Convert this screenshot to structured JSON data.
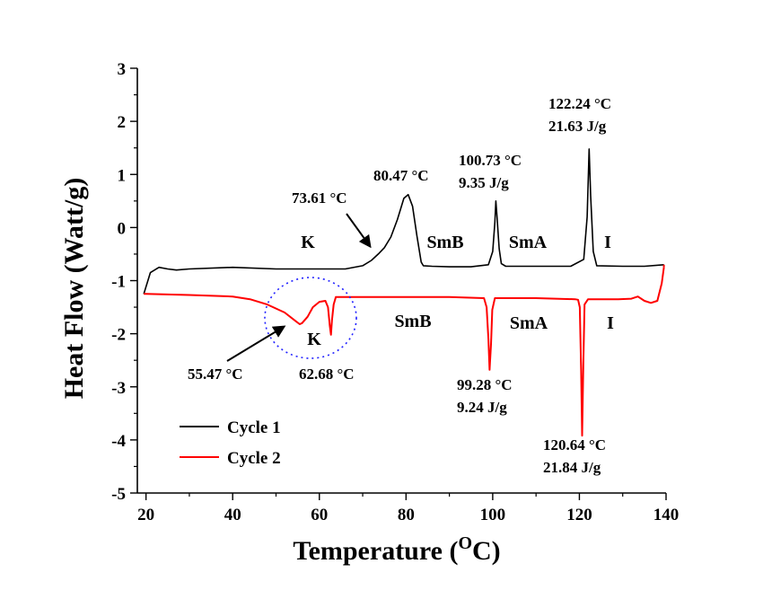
{
  "chart_data": {
    "type": "line",
    "title": "",
    "xlabel": "Temperature (",
    "xlabel_sup": "O",
    "xlabel_tail": "C)",
    "ylabel": "Heat Flow (Watt/g)",
    "xlim": [
      18,
      140
    ],
    "ylim": [
      -5,
      3
    ],
    "x_ticks": [
      20,
      40,
      60,
      80,
      100,
      120,
      140
    ],
    "y_ticks": [
      3,
      2,
      1,
      0,
      -1,
      -2,
      -3,
      -4,
      -5
    ],
    "grid": false,
    "legend_position": "bottom-left",
    "series": [
      {
        "name": "Cycle 1",
        "color": "#000000",
        "x": [
          19.5,
          21,
          23,
          25,
          27,
          30,
          40,
          50,
          60,
          66,
          70,
          72,
          73.6,
          75,
          76.5,
          78,
          79.5,
          80.5,
          81.5,
          82.5,
          83.5,
          84,
          86,
          90,
          95,
          99,
          100,
          100.5,
          100.73,
          101,
          101.5,
          102,
          103,
          110,
          118,
          121,
          121.8,
          122.24,
          122.6,
          123.2,
          124,
          130,
          135,
          139.5
        ],
        "y": [
          -1.25,
          -0.85,
          -0.75,
          -0.78,
          -0.8,
          -0.78,
          -0.75,
          -0.78,
          -0.78,
          -0.78,
          -0.72,
          -0.62,
          -0.5,
          -0.38,
          -0.18,
          0.15,
          0.55,
          0.62,
          0.4,
          -0.15,
          -0.65,
          -0.72,
          -0.73,
          -0.74,
          -0.74,
          -0.7,
          -0.45,
          0.1,
          0.5,
          0.2,
          -0.4,
          -0.68,
          -0.73,
          -0.73,
          -0.73,
          -0.6,
          0.2,
          1.48,
          0.6,
          -0.45,
          -0.72,
          -0.73,
          -0.73,
          -0.7
        ]
      },
      {
        "name": "Cycle 2",
        "color": "#ff0000",
        "x": [
          139.5,
          139,
          138,
          136.5,
          135,
          133.5,
          132,
          129,
          125,
          122,
          121.2,
          120.9,
          120.64,
          120.4,
          120.1,
          119.7,
          119,
          110,
          100.5,
          99.9,
          99.6,
          99.28,
          99.0,
          98.6,
          98,
          90,
          80,
          70,
          63.8,
          63.3,
          62.9,
          62.68,
          62.4,
          62.0,
          61.4,
          60,
          58.5,
          57.3,
          56,
          55.47,
          54.5,
          52,
          48,
          44,
          40,
          30,
          20,
          19.5
        ],
        "y": [
          -0.75,
          -1.05,
          -1.38,
          -1.42,
          -1.38,
          -1.3,
          -1.34,
          -1.35,
          -1.35,
          -1.35,
          -1.45,
          -2.6,
          -3.92,
          -2.7,
          -1.5,
          -1.36,
          -1.35,
          -1.33,
          -1.33,
          -1.55,
          -2.2,
          -2.68,
          -2.1,
          -1.5,
          -1.33,
          -1.31,
          -1.31,
          -1.31,
          -1.31,
          -1.45,
          -1.75,
          -2.02,
          -1.85,
          -1.5,
          -1.38,
          -1.4,
          -1.5,
          -1.68,
          -1.8,
          -1.82,
          -1.76,
          -1.6,
          -1.45,
          -1.35,
          -1.3,
          -1.27,
          -1.25,
          -1.25
        ]
      }
    ],
    "annotations": [
      {
        "lines": [
          "122.24 °C",
          "21.63 J/g"
        ]
      },
      {
        "lines": [
          "100.73 °C",
          "9.35 J/g"
        ]
      },
      {
        "lines": [
          "80.47 °C"
        ]
      },
      {
        "lines": [
          "73.61 °C"
        ]
      },
      {
        "lines": [
          "55.47 °C"
        ]
      },
      {
        "lines": [
          "62.68 °C"
        ]
      },
      {
        "lines": [
          "99.28 °C",
          "9.24 J/g"
        ]
      },
      {
        "lines": [
          "120.64 °C",
          "21.84 J/g"
        ]
      }
    ],
    "phase_labels_heating": [
      "K",
      "SmB",
      "SmA",
      "I"
    ],
    "phase_labels_cooling": [
      "K",
      "SmB",
      "SmA",
      "I"
    ]
  }
}
